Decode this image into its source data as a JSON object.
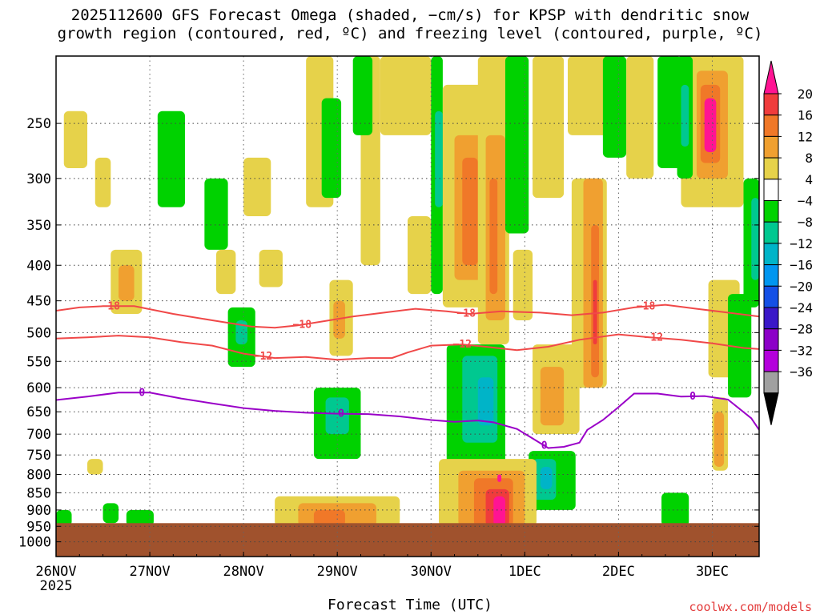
{
  "title_lines": [
    "2025112600 GFS Forecast Omega (shaded, −cm/s) for KPSP with dendritic snow",
    "growth region (contoured, red, ºC) and freezing level (contoured, purple, ºC)"
  ],
  "credit": "coolwx.com/models",
  "colors": {
    "ground": "#a0522d",
    "snow_growth_contour": "#f04848",
    "freezing_level_contour": "#9a00c8",
    "grid": "#666666"
  },
  "chart_data": {
    "type": "heatmap",
    "xlabel": "Forecast Time (UTC)",
    "ylabel": "",
    "x_ticks": [
      {
        "label": "26NOV",
        "sub": "2025",
        "hours": 0
      },
      {
        "label": "27NOV",
        "hours": 24
      },
      {
        "label": "28NOV",
        "hours": 48
      },
      {
        "label": "29NOV",
        "hours": 72
      },
      {
        "label": "30NOV",
        "hours": 96
      },
      {
        "label": "1DEC",
        "hours": 120
      },
      {
        "label": "2DEC",
        "hours": 144
      },
      {
        "label": "3DEC",
        "hours": 168
      }
    ],
    "xlim_hours": [
      0,
      180
    ],
    "y_unit": "hPa",
    "y_scale": "log",
    "ylim": [
      1050,
      200
    ],
    "y_ticks": [
      250,
      300,
      350,
      400,
      450,
      500,
      550,
      600,
      650,
      700,
      750,
      800,
      850,
      900,
      950,
      1000
    ],
    "grid": true,
    "colorbar": {
      "labels": [
        "20",
        "16",
        "12",
        "8",
        "4",
        "−4",
        "−8",
        "−12",
        "−16",
        "−20",
        "−24",
        "−28",
        "−32",
        "−36"
      ],
      "colors": [
        "#ff1493",
        "#f03c3c",
        "#f07828",
        "#f0a030",
        "#e6d24a",
        "#ffffff",
        "#00d200",
        "#00c890",
        "#00b4c8",
        "#0096f0",
        "#1450e6",
        "#3a18c8",
        "#8c00c8",
        "#b400dc",
        "#a0a0a0"
      ]
    },
    "omega_regions": [
      {
        "v": 4,
        "t0": 2,
        "t1": 8,
        "p0": 240,
        "p1": 290
      },
      {
        "v": 4,
        "t0": 10,
        "t1": 14,
        "p0": 280,
        "p1": 330
      },
      {
        "v": 4,
        "t0": 14,
        "t1": 22,
        "p0": 380,
        "p1": 470
      },
      {
        "v": 8,
        "t0": 16,
        "t1": 20,
        "p0": 400,
        "p1": 450
      },
      {
        "v": -4,
        "t0": 26,
        "t1": 33,
        "p0": 240,
        "p1": 330
      },
      {
        "v": -4,
        "t0": 38,
        "t1": 44,
        "p0": 300,
        "p1": 380
      },
      {
        "v": 4,
        "t0": 41,
        "t1": 46,
        "p0": 380,
        "p1": 440
      },
      {
        "v": -4,
        "t0": 44,
        "t1": 51,
        "p0": 460,
        "p1": 560
      },
      {
        "v": -8,
        "t0": 46,
        "t1": 49,
        "p0": 480,
        "p1": 520
      },
      {
        "v": 4,
        "t0": 48,
        "t1": 55,
        "p0": 280,
        "p1": 340
      },
      {
        "v": 4,
        "t0": 52,
        "t1": 58,
        "p0": 380,
        "p1": 430
      },
      {
        "v": 4,
        "t0": 64,
        "t1": 71,
        "p0": 200,
        "p1": 330
      },
      {
        "v": -4,
        "t0": 68,
        "t1": 73,
        "p0": 230,
        "p1": 320
      },
      {
        "v": 4,
        "t0": 70,
        "t1": 76,
        "p0": 420,
        "p1": 540
      },
      {
        "v": 8,
        "t0": 71,
        "t1": 74,
        "p0": 450,
        "p1": 510
      },
      {
        "v": -4,
        "t0": 66,
        "t1": 78,
        "p0": 600,
        "p1": 760
      },
      {
        "v": -8,
        "t0": 69,
        "t1": 75,
        "p0": 620,
        "p1": 700
      },
      {
        "v": 4,
        "t0": 78,
        "t1": 83,
        "p0": 200,
        "p1": 400
      },
      {
        "v": -4,
        "t0": 76,
        "t1": 81,
        "p0": 200,
        "p1": 260
      },
      {
        "v": 4,
        "t0": 83,
        "t1": 96,
        "p0": 200,
        "p1": 260
      },
      {
        "v": 4,
        "t0": 90,
        "t1": 96,
        "p0": 340,
        "p1": 440
      },
      {
        "v": -4,
        "t0": 96,
        "t1": 99,
        "p0": 200,
        "p1": 440
      },
      {
        "v": -8,
        "t0": 97,
        "t1": 99,
        "p0": 240,
        "p1": 330
      },
      {
        "v": 4,
        "t0": 99,
        "t1": 110,
        "p0": 220,
        "p1": 460
      },
      {
        "v": 8,
        "t0": 102,
        "t1": 109,
        "p0": 260,
        "p1": 420
      },
      {
        "v": 12,
        "t0": 104,
        "t1": 108,
        "p0": 280,
        "p1": 400
      },
      {
        "v": 4,
        "t0": 108,
        "t1": 116,
        "p0": 200,
        "p1": 520
      },
      {
        "v": 8,
        "t0": 110,
        "t1": 115,
        "p0": 260,
        "p1": 480
      },
      {
        "v": 12,
        "t0": 111,
        "t1": 113,
        "p0": 300,
        "p1": 440
      },
      {
        "v": -4,
        "t0": 115,
        "t1": 121,
        "p0": 200,
        "p1": 360
      },
      {
        "v": 4,
        "t0": 117,
        "t1": 122,
        "p0": 380,
        "p1": 480
      },
      {
        "v": 4,
        "t0": 122,
        "t1": 130,
        "p0": 200,
        "p1": 320
      },
      {
        "v": 4,
        "t0": 131,
        "t1": 144,
        "p0": 200,
        "p1": 260
      },
      {
        "v": 4,
        "t0": 132,
        "t1": 141,
        "p0": 300,
        "p1": 600
      },
      {
        "v": 8,
        "t0": 135,
        "t1": 140,
        "p0": 300,
        "p1": 600
      },
      {
        "v": 12,
        "t0": 137,
        "t1": 139,
        "p0": 350,
        "p1": 580
      },
      {
        "v": 16,
        "t0": 137.5,
        "t1": 138.5,
        "p0": 420,
        "p1": 520
      },
      {
        "v": -4,
        "t0": 140,
        "t1": 146,
        "p0": 200,
        "p1": 280
      },
      {
        "v": 4,
        "t0": 146,
        "t1": 153,
        "p0": 200,
        "p1": 300
      },
      {
        "v": -4,
        "t0": 154,
        "t1": 160,
        "p0": 200,
        "p1": 290
      },
      {
        "v": 4,
        "t0": 160,
        "t1": 176,
        "p0": 200,
        "p1": 330
      },
      {
        "v": 8,
        "t0": 164,
        "t1": 172,
        "p0": 210,
        "p1": 300
      },
      {
        "v": 12,
        "t0": 165,
        "t1": 170,
        "p0": 220,
        "p1": 285
      },
      {
        "v": 20,
        "t0": 166,
        "t1": 169,
        "p0": 230,
        "p1": 275
      },
      {
        "v": -4,
        "t0": 159,
        "t1": 163,
        "p0": 200,
        "p1": 300
      },
      {
        "v": -8,
        "t0": 160,
        "t1": 162,
        "p0": 220,
        "p1": 270
      },
      {
        "v": 4,
        "t0": 167,
        "t1": 175,
        "p0": 420,
        "p1": 580
      },
      {
        "v": 4,
        "t0": 168,
        "t1": 172,
        "p0": 620,
        "p1": 790
      },
      {
        "v": 8,
        "t0": 168.5,
        "t1": 171,
        "p0": 650,
        "p1": 780
      },
      {
        "v": -4,
        "t0": 172,
        "t1": 178,
        "p0": 440,
        "p1": 620
      },
      {
        "v": -4,
        "t0": 176,
        "t1": 180,
        "p0": 300,
        "p1": 460
      },
      {
        "v": -8,
        "t0": 178,
        "t1": 180,
        "p0": 320,
        "p1": 420
      },
      {
        "v": 4,
        "t0": 122,
        "t1": 134,
        "p0": 520,
        "p1": 700
      },
      {
        "v": 8,
        "t0": 124,
        "t1": 130,
        "p0": 560,
        "p1": 680
      },
      {
        "v": -4,
        "t0": 100,
        "t1": 115,
        "p0": 520,
        "p1": 780
      },
      {
        "v": -8,
        "t0": 104,
        "t1": 113,
        "p0": 540,
        "p1": 720
      },
      {
        "v": -12,
        "t0": 108,
        "t1": 112,
        "p0": 580,
        "p1": 680
      },
      {
        "v": -4,
        "t0": 121,
        "t1": 133,
        "p0": 740,
        "p1": 900
      },
      {
        "v": -8,
        "t0": 122,
        "t1": 128,
        "p0": 760,
        "p1": 870
      },
      {
        "v": -12,
        "t0": 124,
        "t1": 127,
        "p0": 780,
        "p1": 840
      },
      {
        "v": -4,
        "t0": 155,
        "t1": 162,
        "p0": 850,
        "p1": 950
      },
      {
        "v": -4,
        "t0": 0,
        "t1": 4,
        "p0": 900,
        "p1": 950
      },
      {
        "v": -4,
        "t0": 12,
        "t1": 16,
        "p0": 880,
        "p1": 940
      },
      {
        "v": -4,
        "t0": 18,
        "t1": 25,
        "p0": 900,
        "p1": 950
      },
      {
        "v": 4,
        "t0": 8,
        "t1": 12,
        "p0": 760,
        "p1": 800
      },
      {
        "v": 4,
        "t0": 56,
        "t1": 88,
        "p0": 860,
        "p1": 950
      },
      {
        "v": 8,
        "t0": 62,
        "t1": 82,
        "p0": 880,
        "p1": 950
      },
      {
        "v": 12,
        "t0": 66,
        "t1": 74,
        "p0": 900,
        "p1": 950
      },
      {
        "v": 4,
        "t0": 98,
        "t1": 123,
        "p0": 760,
        "p1": 950
      },
      {
        "v": 8,
        "t0": 103,
        "t1": 120,
        "p0": 790,
        "p1": 950
      },
      {
        "v": 12,
        "t0": 107,
        "t1": 117,
        "p0": 810,
        "p1": 950
      },
      {
        "v": 16,
        "t0": 110,
        "t1": 116,
        "p0": 840,
        "p1": 950
      },
      {
        "v": 20,
        "t0": 112,
        "t1": 115,
        "p0": 860,
        "p1": 950
      },
      {
        "v": 20,
        "t0": 113,
        "t1": 114,
        "p0": 800,
        "p1": 820
      }
    ],
    "contours": [
      {
        "name": "-18",
        "label": "−18",
        "kind": "snow_growth",
        "label_at_hours": [
          14,
          63,
          105,
          151
        ],
        "points": [
          [
            0,
            465
          ],
          [
            6,
            460
          ],
          [
            12,
            458
          ],
          [
            20,
            458
          ],
          [
            30,
            470
          ],
          [
            40,
            480
          ],
          [
            50,
            490
          ],
          [
            56,
            492
          ],
          [
            62,
            488
          ],
          [
            70,
            480
          ],
          [
            76,
            474
          ],
          [
            84,
            468
          ],
          [
            92,
            462
          ],
          [
            100,
            466
          ],
          [
            106,
            470
          ],
          [
            114,
            466
          ],
          [
            124,
            468
          ],
          [
            132,
            472
          ],
          [
            140,
            468
          ],
          [
            148,
            460
          ],
          [
            156,
            456
          ],
          [
            164,
            462
          ],
          [
            172,
            468
          ],
          [
            180,
            474
          ]
        ]
      },
      {
        "name": "-12",
        "label": "−12",
        "kind": "snow_growth",
        "label_at_hours": [
          53,
          104,
          153
        ],
        "points": [
          [
            0,
            510
          ],
          [
            8,
            508
          ],
          [
            16,
            505
          ],
          [
            24,
            508
          ],
          [
            32,
            516
          ],
          [
            40,
            522
          ],
          [
            48,
            536
          ],
          [
            56,
            544
          ],
          [
            64,
            542
          ],
          [
            72,
            547
          ],
          [
            80,
            544
          ],
          [
            86,
            544
          ],
          [
            90,
            534
          ],
          [
            96,
            522
          ],
          [
            104,
            520
          ],
          [
            110,
            524
          ],
          [
            118,
            530
          ],
          [
            126,
            524
          ],
          [
            134,
            512
          ],
          [
            144,
            503
          ],
          [
            152,
            508
          ],
          [
            160,
            512
          ],
          [
            168,
            518
          ],
          [
            176,
            526
          ],
          [
            180,
            528
          ]
        ]
      },
      {
        "name": "0",
        "label": "0",
        "kind": "freezing_level",
        "label_at_hours": [
          22,
          73,
          125,
          163
        ],
        "points": [
          [
            0,
            625
          ],
          [
            8,
            618
          ],
          [
            16,
            610
          ],
          [
            24,
            610
          ],
          [
            32,
            622
          ],
          [
            40,
            632
          ],
          [
            48,
            642
          ],
          [
            56,
            648
          ],
          [
            64,
            652
          ],
          [
            72,
            654
          ],
          [
            80,
            655
          ],
          [
            88,
            660
          ],
          [
            96,
            668
          ],
          [
            102,
            672
          ],
          [
            108,
            669
          ],
          [
            112,
            673
          ],
          [
            118,
            688
          ],
          [
            122,
            710
          ],
          [
            126,
            733
          ],
          [
            130,
            730
          ],
          [
            134,
            720
          ],
          [
            136,
            690
          ],
          [
            140,
            668
          ],
          [
            144,
            640
          ],
          [
            148,
            612
          ],
          [
            154,
            612
          ],
          [
            160,
            618
          ],
          [
            166,
            617
          ],
          [
            172,
            624
          ],
          [
            178,
            664
          ],
          [
            180,
            690
          ]
        ]
      }
    ],
    "ground_pressure": 940
  }
}
